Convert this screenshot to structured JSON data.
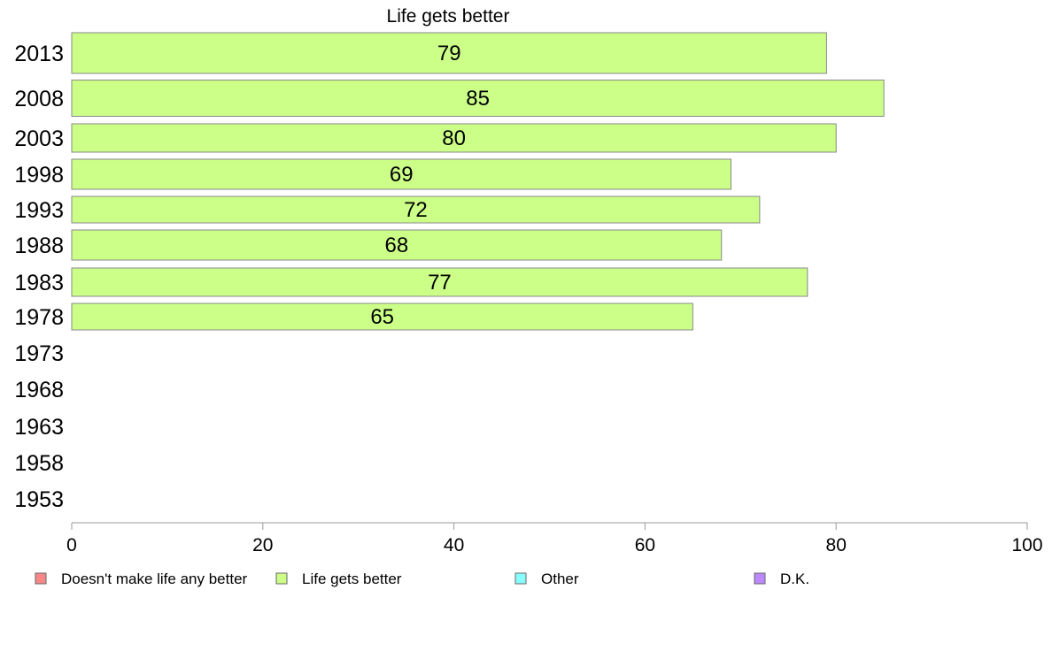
{
  "chart_data": {
    "type": "bar",
    "orientation": "horizontal",
    "title": "Life gets better",
    "xlabel": "",
    "ylabel": "",
    "xlim": [
      0,
      100
    ],
    "x_ticks": [
      "0",
      "20",
      "40",
      "60",
      "80",
      "100"
    ],
    "categories": [
      "2013",
      "2008",
      "2003",
      "1998",
      "1993",
      "1988",
      "1983",
      "1978",
      "1973",
      "1968",
      "1963",
      "1958",
      "1953"
    ],
    "series": [
      {
        "name": "Life gets better",
        "color": "#ccff88",
        "values": [
          79,
          85,
          80,
          69,
          72,
          68,
          77,
          65,
          null,
          null,
          null,
          null,
          null
        ],
        "labels": [
          "79",
          "85",
          "80",
          "69",
          "72",
          "68",
          "77",
          "65",
          "",
          "",
          "",
          "",
          ""
        ]
      }
    ],
    "legend": {
      "placement": "bottom",
      "items": [
        {
          "label": "Doesn't make life any better",
          "color": "#f88888"
        },
        {
          "label": "Life gets better",
          "color": "#ccff88"
        },
        {
          "label": "Other",
          "color": "#88ffff"
        },
        {
          "label": "D.K.",
          "color": "#bb88ff"
        }
      ]
    },
    "grid": false
  }
}
